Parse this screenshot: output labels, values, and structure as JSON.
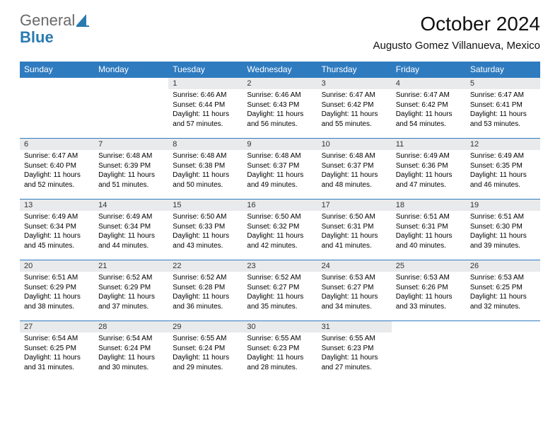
{
  "logo": {
    "text1": "General",
    "text2": "Blue",
    "icon_color": "#2a7ab0"
  },
  "title": "October 2024",
  "location": "Augusto Gomez Villanueva, Mexico",
  "header_bg": "#2f7bbf",
  "daynum_bg": "#e9eaec",
  "weekdays": [
    "Sunday",
    "Monday",
    "Tuesday",
    "Wednesday",
    "Thursday",
    "Friday",
    "Saturday"
  ],
  "weeks": [
    [
      null,
      null,
      {
        "n": "1",
        "sr": "6:46 AM",
        "ss": "6:44 PM",
        "dl": "11 hours and 57 minutes."
      },
      {
        "n": "2",
        "sr": "6:46 AM",
        "ss": "6:43 PM",
        "dl": "11 hours and 56 minutes."
      },
      {
        "n": "3",
        "sr": "6:47 AM",
        "ss": "6:42 PM",
        "dl": "11 hours and 55 minutes."
      },
      {
        "n": "4",
        "sr": "6:47 AM",
        "ss": "6:42 PM",
        "dl": "11 hours and 54 minutes."
      },
      {
        "n": "5",
        "sr": "6:47 AM",
        "ss": "6:41 PM",
        "dl": "11 hours and 53 minutes."
      }
    ],
    [
      {
        "n": "6",
        "sr": "6:47 AM",
        "ss": "6:40 PM",
        "dl": "11 hours and 52 minutes."
      },
      {
        "n": "7",
        "sr": "6:48 AM",
        "ss": "6:39 PM",
        "dl": "11 hours and 51 minutes."
      },
      {
        "n": "8",
        "sr": "6:48 AM",
        "ss": "6:38 PM",
        "dl": "11 hours and 50 minutes."
      },
      {
        "n": "9",
        "sr": "6:48 AM",
        "ss": "6:37 PM",
        "dl": "11 hours and 49 minutes."
      },
      {
        "n": "10",
        "sr": "6:48 AM",
        "ss": "6:37 PM",
        "dl": "11 hours and 48 minutes."
      },
      {
        "n": "11",
        "sr": "6:49 AM",
        "ss": "6:36 PM",
        "dl": "11 hours and 47 minutes."
      },
      {
        "n": "12",
        "sr": "6:49 AM",
        "ss": "6:35 PM",
        "dl": "11 hours and 46 minutes."
      }
    ],
    [
      {
        "n": "13",
        "sr": "6:49 AM",
        "ss": "6:34 PM",
        "dl": "11 hours and 45 minutes."
      },
      {
        "n": "14",
        "sr": "6:49 AM",
        "ss": "6:34 PM",
        "dl": "11 hours and 44 minutes."
      },
      {
        "n": "15",
        "sr": "6:50 AM",
        "ss": "6:33 PM",
        "dl": "11 hours and 43 minutes."
      },
      {
        "n": "16",
        "sr": "6:50 AM",
        "ss": "6:32 PM",
        "dl": "11 hours and 42 minutes."
      },
      {
        "n": "17",
        "sr": "6:50 AM",
        "ss": "6:31 PM",
        "dl": "11 hours and 41 minutes."
      },
      {
        "n": "18",
        "sr": "6:51 AM",
        "ss": "6:31 PM",
        "dl": "11 hours and 40 minutes."
      },
      {
        "n": "19",
        "sr": "6:51 AM",
        "ss": "6:30 PM",
        "dl": "11 hours and 39 minutes."
      }
    ],
    [
      {
        "n": "20",
        "sr": "6:51 AM",
        "ss": "6:29 PM",
        "dl": "11 hours and 38 minutes."
      },
      {
        "n": "21",
        "sr": "6:52 AM",
        "ss": "6:29 PM",
        "dl": "11 hours and 37 minutes."
      },
      {
        "n": "22",
        "sr": "6:52 AM",
        "ss": "6:28 PM",
        "dl": "11 hours and 36 minutes."
      },
      {
        "n": "23",
        "sr": "6:52 AM",
        "ss": "6:27 PM",
        "dl": "11 hours and 35 minutes."
      },
      {
        "n": "24",
        "sr": "6:53 AM",
        "ss": "6:27 PM",
        "dl": "11 hours and 34 minutes."
      },
      {
        "n": "25",
        "sr": "6:53 AM",
        "ss": "6:26 PM",
        "dl": "11 hours and 33 minutes."
      },
      {
        "n": "26",
        "sr": "6:53 AM",
        "ss": "6:25 PM",
        "dl": "11 hours and 32 minutes."
      }
    ],
    [
      {
        "n": "27",
        "sr": "6:54 AM",
        "ss": "6:25 PM",
        "dl": "11 hours and 31 minutes."
      },
      {
        "n": "28",
        "sr": "6:54 AM",
        "ss": "6:24 PM",
        "dl": "11 hours and 30 minutes."
      },
      {
        "n": "29",
        "sr": "6:55 AM",
        "ss": "6:24 PM",
        "dl": "11 hours and 29 minutes."
      },
      {
        "n": "30",
        "sr": "6:55 AM",
        "ss": "6:23 PM",
        "dl": "11 hours and 28 minutes."
      },
      {
        "n": "31",
        "sr": "6:55 AM",
        "ss": "6:23 PM",
        "dl": "11 hours and 27 minutes."
      },
      null,
      null
    ]
  ],
  "labels": {
    "sunrise": "Sunrise:",
    "sunset": "Sunset:",
    "daylight": "Daylight:"
  }
}
